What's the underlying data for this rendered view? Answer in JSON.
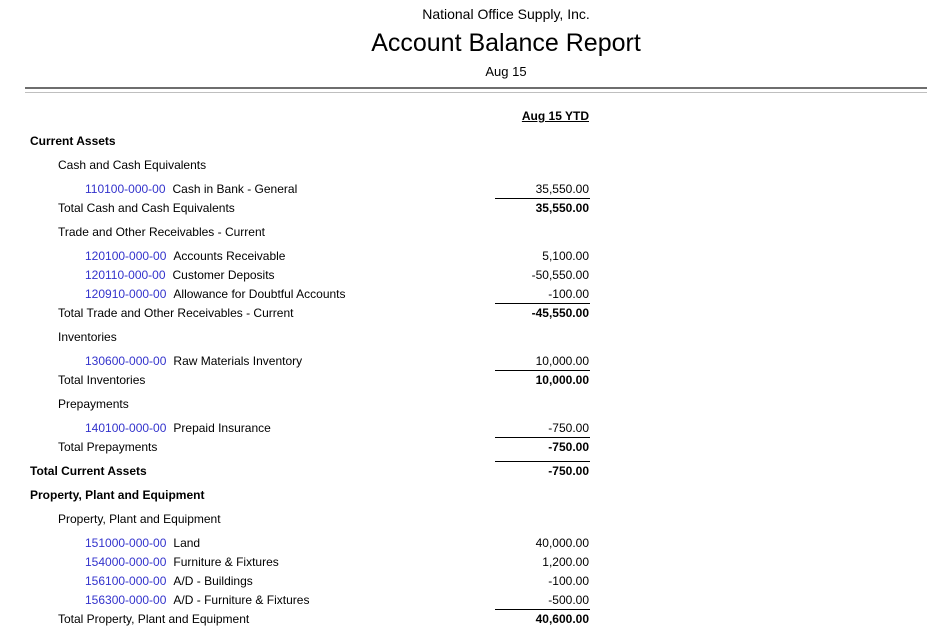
{
  "header": {
    "company": "National Office Supply, Inc.",
    "title": "Account Balance Report",
    "period": "Aug 15"
  },
  "columns": {
    "amount_header": "Aug 15 YTD"
  },
  "colors": {
    "account_link": "#3333cc",
    "text": "#000000",
    "divider_dark": "#6e6e6e",
    "divider_light": "#bfbfbf"
  },
  "report": {
    "rows": [
      {
        "type": "section",
        "label": "Current Assets"
      },
      {
        "type": "subsection",
        "label": "Cash and Cash Equivalents"
      },
      {
        "type": "detail",
        "account": "110100-000-00",
        "label": "Cash in Bank - General",
        "amount": "35,550.00"
      },
      {
        "type": "total",
        "label": "Total Cash and Cash Equivalents",
        "amount": "35,550.00",
        "rule_above": true
      },
      {
        "type": "subsection",
        "label": "Trade and Other Receivables - Current"
      },
      {
        "type": "detail",
        "account": "120100-000-00",
        "label": "Accounts Receivable",
        "amount": "5,100.00"
      },
      {
        "type": "detail",
        "account": "120110-000-00",
        "label": "Customer Deposits",
        "amount": "-50,550.00"
      },
      {
        "type": "detail",
        "account": "120910-000-00",
        "label": "Allowance for Doubtful Accounts",
        "amount": "-100.00"
      },
      {
        "type": "total",
        "label": "Total Trade and Other Receivables - Current",
        "amount": "-45,550.00",
        "rule_above": true
      },
      {
        "type": "subsection",
        "label": "Inventories"
      },
      {
        "type": "detail",
        "account": "130600-000-00",
        "label": "Raw Materials Inventory",
        "amount": "10,000.00"
      },
      {
        "type": "total",
        "label": "Total Inventories",
        "amount": "10,000.00",
        "rule_above": true
      },
      {
        "type": "subsection",
        "label": "Prepayments"
      },
      {
        "type": "detail",
        "account": "140100-000-00",
        "label": "Prepaid Insurance",
        "amount": "-750.00"
      },
      {
        "type": "total",
        "label": "Total Prepayments",
        "amount": "-750.00",
        "rule_above": true
      },
      {
        "type": "grand_total",
        "label": "Total Current Assets",
        "amount": "-750.00",
        "rule_above": true
      },
      {
        "type": "section",
        "label": "Property, Plant and Equipment"
      },
      {
        "type": "subsection",
        "label": "Property, Plant and Equipment"
      },
      {
        "type": "detail",
        "account": "151000-000-00",
        "label": "Land",
        "amount": "40,000.00"
      },
      {
        "type": "detail",
        "account": "154000-000-00",
        "label": "Furniture & Fixtures",
        "amount": "1,200.00"
      },
      {
        "type": "detail",
        "account": "156100-000-00",
        "label": "A/D - Buildings",
        "amount": "-100.00"
      },
      {
        "type": "detail",
        "account": "156300-000-00",
        "label": "A/D - Furniture & Fixtures",
        "amount": "-500.00"
      },
      {
        "type": "total",
        "label": "Total Property, Plant and Equipment",
        "amount": "40,600.00",
        "rule_above": true
      }
    ]
  }
}
